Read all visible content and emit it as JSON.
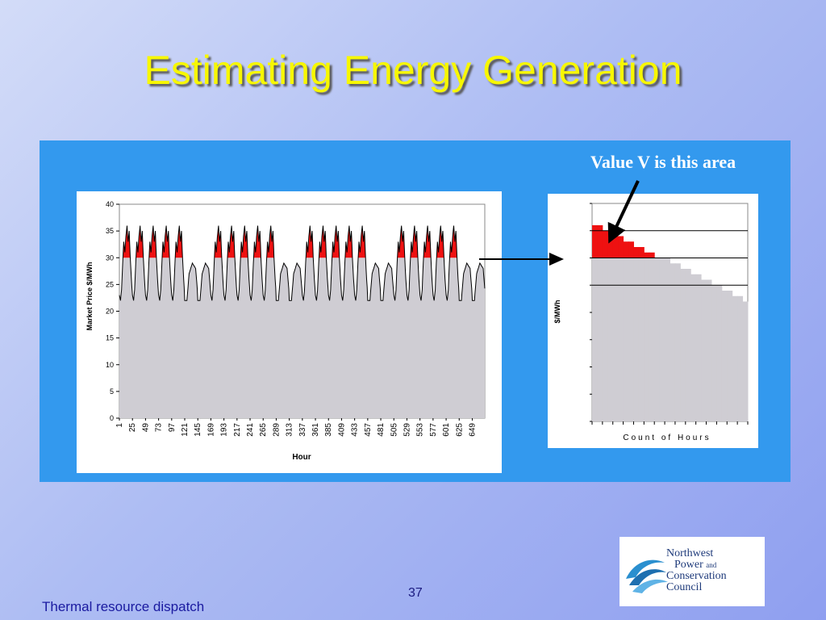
{
  "slide": {
    "title": "Estimating Energy Generation",
    "page_number": "37",
    "footer": "Thermal resource dispatch",
    "callout": "Value V is this area"
  },
  "logo": {
    "line1": "Northwest",
    "line2_main": "Power",
    "line2_small": "and",
    "line3": "Conservation",
    "line4": "Council",
    "icon": "wave-icon"
  },
  "colors": {
    "panel": "#3399ee",
    "fill_below": "#cfcdd3",
    "fill_above": "#ee1111",
    "title": "#f7f700"
  },
  "chart_data": [
    {
      "type": "area",
      "xlabel": "Hour",
      "ylabel": "Market Price $/MWh",
      "ylim": [
        0,
        40
      ],
      "yticks": [
        0,
        5,
        10,
        15,
        20,
        25,
        30,
        35,
        40
      ],
      "xticks": [
        "1",
        "25",
        "49",
        "73",
        "97",
        "121",
        "145",
        "169",
        "193",
        "217",
        "241",
        "265",
        "289",
        "313",
        "337",
        "361",
        "385",
        "409",
        "433",
        "457",
        "481",
        "505",
        "529",
        "553",
        "577",
        "601",
        "625",
        "649"
      ],
      "threshold": 30,
      "series": [
        {
          "daily_profile": [
            [
              0,
              23
            ],
            [
              2,
              22
            ],
            [
              4,
              24
            ],
            [
              6,
              29
            ],
            [
              8,
              33
            ],
            [
              10,
              31
            ],
            [
              12,
              34
            ],
            [
              14,
              36
            ],
            [
              16,
              33
            ],
            [
              18,
              35
            ],
            [
              20,
              30
            ],
            [
              22,
              26
            ],
            [
              24,
              23
            ]
          ],
          "weekend_profile": [
            [
              0,
              22
            ],
            [
              4,
              22
            ],
            [
              8,
              27
            ],
            [
              14,
              29
            ],
            [
              20,
              28
            ],
            [
              24,
              23
            ]
          ],
          "day_pattern": [
            "wd",
            "wd",
            "wd",
            "wd",
            "wd",
            "we",
            "we",
            "wd",
            "wd",
            "wd",
            "wd",
            "wd",
            "we",
            "we",
            "wd",
            "wd",
            "wd",
            "wd",
            "wd",
            "we",
            "we",
            "wd",
            "wd",
            "wd",
            "wd",
            "wd",
            "we",
            "we"
          ]
        }
      ]
    },
    {
      "type": "area",
      "xlabel": "Count of Hours",
      "ylabel": "$/MWh",
      "ylim": [
        0,
        40
      ],
      "threshold": 30,
      "series": [
        {
          "duration_values": [
            36,
            36,
            35,
            35,
            34,
            34,
            33,
            33,
            32,
            32,
            31,
            31,
            30,
            30,
            30,
            29,
            29,
            28,
            28,
            27,
            27,
            26,
            26,
            25,
            25,
            24,
            24,
            23,
            23,
            22
          ]
        }
      ]
    }
  ]
}
